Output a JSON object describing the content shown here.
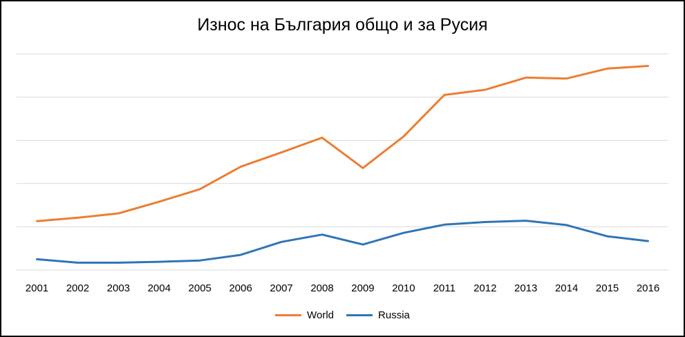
{
  "chart_data": {
    "type": "line",
    "title": "Износ на България общо и за Русия",
    "xlabel": "",
    "ylabel": "",
    "x": [
      "2001",
      "2002",
      "2003",
      "2004",
      "2005",
      "2006",
      "2007",
      "2008",
      "2009",
      "2010",
      "2011",
      "2012",
      "2013",
      "2014",
      "2015",
      "2016"
    ],
    "ylim": [
      0,
      5
    ],
    "gridlines": [
      0,
      1,
      2,
      3,
      4,
      5
    ],
    "grid": true,
    "legend": "bottom",
    "series": [
      {
        "name": "World",
        "color": "#ED7D31",
        "values": [
          1.13,
          1.21,
          1.31,
          1.58,
          1.87,
          2.39,
          2.72,
          3.06,
          2.36,
          3.09,
          4.05,
          4.17,
          4.45,
          4.43,
          4.66,
          4.72
        ]
      },
      {
        "name": "Russia",
        "color": "#2E75B6",
        "values": [
          0.25,
          0.17,
          0.17,
          0.19,
          0.22,
          0.35,
          0.65,
          0.82,
          0.59,
          0.86,
          1.05,
          1.11,
          1.14,
          1.04,
          0.78,
          0.67
        ]
      }
    ]
  }
}
